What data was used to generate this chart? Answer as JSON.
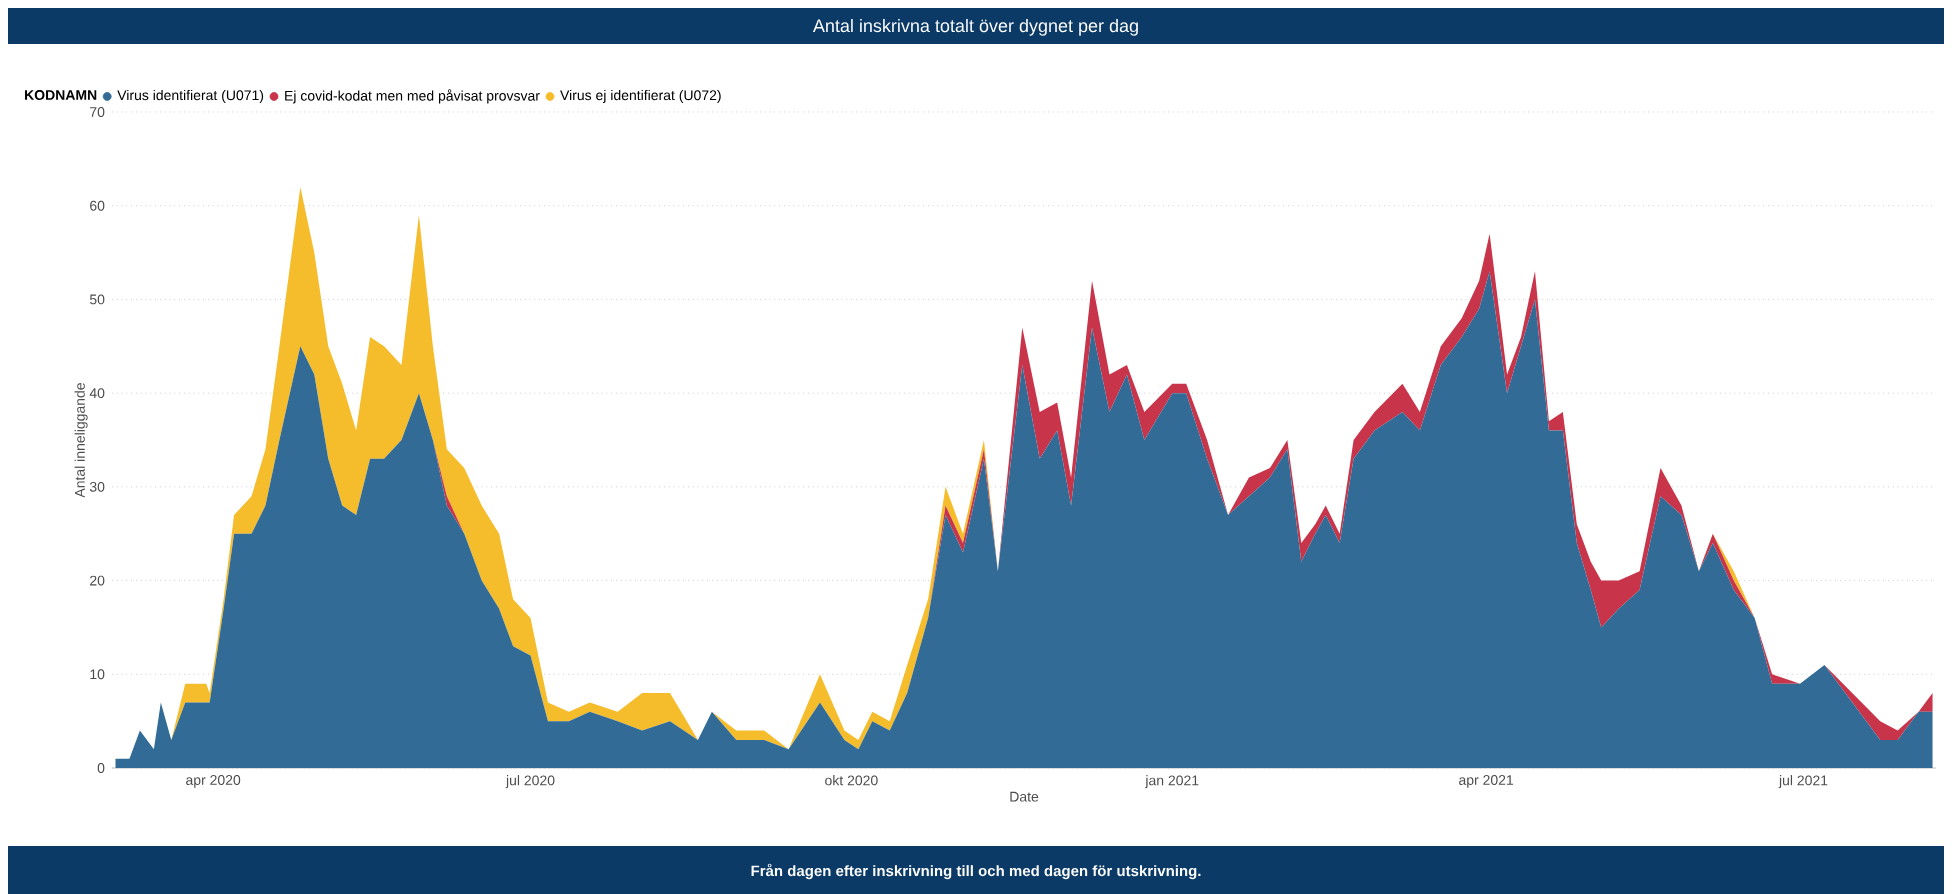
{
  "chart_data": {
    "type": "area",
    "stacked": true,
    "title": "Antal inskrivna totalt över dygnet per dag",
    "legend_title": "KODNAMN",
    "xlabel": "Date",
    "ylabel": "Antal inneliggande",
    "annotations": [
      "Från dagen efter inskrivning till och med dagen för utskrivning."
    ],
    "x": [
      "2020-03-04",
      "2020-03-08",
      "2020-03-11",
      "2020-03-15",
      "2020-03-17",
      "2020-03-20",
      "2020-03-24",
      "2020-03-30",
      "2020-03-31",
      "2020-04-04",
      "2020-04-07",
      "2020-04-12",
      "2020-04-16",
      "2020-04-20",
      "2020-04-26",
      "2020-04-30",
      "2020-05-04",
      "2020-05-08",
      "2020-05-12",
      "2020-05-16",
      "2020-05-20",
      "2020-05-25",
      "2020-05-30",
      "2020-06-03",
      "2020-06-07",
      "2020-06-12",
      "2020-06-17",
      "2020-06-22",
      "2020-06-26",
      "2020-07-01",
      "2020-07-06",
      "2020-07-12",
      "2020-07-18",
      "2020-07-26",
      "2020-08-02",
      "2020-08-10",
      "2020-08-18",
      "2020-08-22",
      "2020-08-29",
      "2020-09-06",
      "2020-09-13",
      "2020-09-22",
      "2020-09-29",
      "2020-10-03",
      "2020-10-07",
      "2020-10-12",
      "2020-10-17",
      "2020-10-23",
      "2020-10-28",
      "2020-11-02",
      "2020-11-08",
      "2020-11-12",
      "2020-11-19",
      "2020-11-24",
      "2020-11-29",
      "2020-12-03",
      "2020-12-09",
      "2020-12-14",
      "2020-12-19",
      "2020-12-24",
      "2021-01-01",
      "2021-01-05",
      "2021-01-11",
      "2021-01-17",
      "2021-01-23",
      "2021-01-29",
      "2021-02-03",
      "2021-02-07",
      "2021-02-11",
      "2021-02-14",
      "2021-02-18",
      "2021-02-22",
      "2021-02-28",
      "2021-03-08",
      "2021-03-13",
      "2021-03-19",
      "2021-03-25",
      "2021-03-30",
      "2021-04-02",
      "2021-04-07",
      "2021-04-11",
      "2021-04-15",
      "2021-04-19",
      "2021-04-23",
      "2021-04-27",
      "2021-05-01",
      "2021-05-04",
      "2021-05-09",
      "2021-05-15",
      "2021-05-21",
      "2021-05-27",
      "2021-06-01",
      "2021-06-05",
      "2021-06-11",
      "2021-06-17",
      "2021-06-22",
      "2021-06-30",
      "2021-07-07",
      "2021-07-15",
      "2021-07-23",
      "2021-07-28",
      "2021-08-03",
      "2021-08-07"
    ],
    "series": [
      {
        "name": "Virus identifierat (U071)",
        "color": "#336b97",
        "values": [
          1,
          1,
          4,
          2,
          7,
          3,
          7,
          7,
          7,
          17,
          25,
          25,
          28,
          35,
          45,
          42,
          33,
          28,
          27,
          33,
          33,
          35,
          40,
          35,
          28,
          25,
          20,
          17,
          13,
          12,
          5,
          5,
          6,
          5,
          4,
          5,
          3,
          6,
          3,
          3,
          2,
          7,
          3,
          2,
          5,
          4,
          8,
          16,
          27,
          23,
          33,
          21,
          43,
          33,
          36,
          28,
          47,
          38,
          42,
          35,
          40,
          40,
          33,
          27,
          29,
          31,
          34,
          22,
          25,
          27,
          24,
          33,
          36,
          38,
          36,
          43,
          46,
          49,
          53,
          40,
          45,
          50,
          36,
          36,
          24,
          19,
          15,
          17,
          19,
          29,
          27,
          21,
          24,
          19,
          16,
          9,
          9,
          11,
          7,
          3,
          3,
          6,
          6
        ]
      },
      {
        "name": "Ej covid-kodat men med påvisat provsvar",
        "color": "#c8354a",
        "values": [
          0,
          0,
          0,
          0,
          0,
          0,
          0,
          0,
          0,
          0,
          0,
          0,
          0,
          0,
          0,
          0,
          0,
          0,
          0,
          0,
          0,
          0,
          0,
          0,
          1,
          0,
          0,
          0,
          0,
          0,
          0,
          0,
          0,
          0,
          0,
          0,
          0,
          0,
          0,
          0,
          0,
          0,
          0,
          0,
          0,
          0,
          0,
          0,
          1,
          1,
          1,
          0,
          4,
          5,
          3,
          3,
          5,
          4,
          1,
          3,
          1,
          1,
          2,
          0,
          2,
          1,
          1,
          2,
          1,
          1,
          1,
          2,
          2,
          3,
          2,
          2,
          2,
          3,
          4,
          2,
          1,
          3,
          1,
          2,
          2,
          3,
          5,
          3,
          2,
          3,
          1,
          0,
          1,
          1,
          0,
          1,
          0,
          0,
          1,
          2,
          1,
          0,
          2
        ]
      },
      {
        "name": "Virus ej identifierat (U072)",
        "color": "#f5bc2c",
        "values": [
          0,
          0,
          0,
          0,
          0,
          0,
          2,
          2,
          1,
          1,
          2,
          4,
          6,
          10,
          17,
          13,
          12,
          13,
          9,
          13,
          12,
          8,
          19,
          10,
          5,
          7,
          8,
          8,
          5,
          4,
          2,
          1,
          1,
          1,
          4,
          3,
          0,
          0,
          1,
          1,
          0,
          3,
          1,
          1,
          1,
          1,
          3,
          2,
          2,
          1,
          1,
          0,
          0,
          0,
          0,
          0,
          0,
          0,
          0,
          0,
          0,
          0,
          0,
          0,
          0,
          0,
          0,
          0,
          0,
          0,
          0,
          0,
          0,
          0,
          0,
          0,
          0,
          0,
          0,
          0,
          0,
          0,
          0,
          0,
          0,
          0,
          0,
          0,
          0,
          0,
          0,
          0,
          0,
          1,
          0,
          0,
          0,
          0,
          0,
          0,
          0,
          0,
          0
        ]
      }
    ],
    "xlim": [
      "2020-03-03",
      "2021-08-08"
    ],
    "xticks": [
      {
        "value": "2020-04-01",
        "label": "apr 2020"
      },
      {
        "value": "2020-07-01",
        "label": "jul 2020"
      },
      {
        "value": "2020-10-01",
        "label": "okt 2020"
      },
      {
        "value": "2021-01-01",
        "label": "jan 2021"
      },
      {
        "value": "2021-04-01",
        "label": "apr 2021"
      },
      {
        "value": "2021-07-01",
        "label": "jul 2021"
      }
    ],
    "ylim": [
      0,
      70
    ],
    "yticks": [
      0,
      10,
      20,
      30,
      40,
      50,
      60,
      70
    ],
    "grid": "y",
    "legend": "top left"
  }
}
